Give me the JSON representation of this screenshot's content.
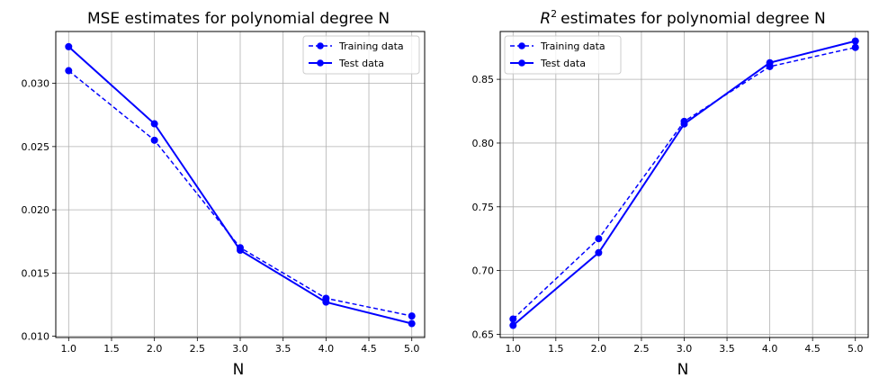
{
  "chart_data": [
    {
      "type": "line",
      "title": "MSE estimates for polynomial degree N",
      "xlabel": "N",
      "ylabel": "",
      "xlim": [
        0.85,
        5.15
      ],
      "ylim": [
        0.0099,
        0.0341
      ],
      "xticks": [
        1.0,
        1.5,
        2.0,
        2.5,
        3.0,
        3.5,
        4.0,
        4.5,
        5.0
      ],
      "xtick_labels": [
        "1.0",
        "1.5",
        "2.0",
        "2.5",
        "3.0",
        "3.5",
        "4.0",
        "4.5",
        "5.0"
      ],
      "yticks": [
        0.01,
        0.015,
        0.02,
        0.025,
        0.03
      ],
      "ytick_labels": [
        "0.010",
        "0.015",
        "0.020",
        "0.025",
        "0.030"
      ],
      "grid": true,
      "legend_position": "top-right",
      "x": [
        1,
        2,
        3,
        4,
        5
      ],
      "series": [
        {
          "name": "Training data",
          "values": [
            0.031,
            0.0255,
            0.017,
            0.013,
            0.0116
          ],
          "style": "dashed",
          "color": "#0000ff"
        },
        {
          "name": "Test data",
          "values": [
            0.0329,
            0.0268,
            0.0168,
            0.0127,
            0.011
          ],
          "style": "solid",
          "color": "#0000ff"
        }
      ]
    },
    {
      "type": "line",
      "title": "estimates for polynomial degree N",
      "title_prefix": "R",
      "title_superscript": "2",
      "xlabel": "N",
      "ylabel": "",
      "xlim": [
        0.85,
        5.15
      ],
      "ylim": [
        0.6475,
        0.8875
      ],
      "xticks": [
        1.0,
        1.5,
        2.0,
        2.5,
        3.0,
        3.5,
        4.0,
        4.5,
        5.0
      ],
      "xtick_labels": [
        "1.0",
        "1.5",
        "2.0",
        "2.5",
        "3.0",
        "3.5",
        "4.0",
        "4.5",
        "5.0"
      ],
      "yticks": [
        0.65,
        0.7,
        0.75,
        0.8,
        0.85
      ],
      "ytick_labels": [
        "0.65",
        "0.70",
        "0.75",
        "0.80",
        "0.85"
      ],
      "grid": true,
      "legend_position": "top-left",
      "x": [
        1,
        2,
        3,
        4,
        5
      ],
      "series": [
        {
          "name": "Training data",
          "values": [
            0.662,
            0.725,
            0.817,
            0.86,
            0.875
          ],
          "style": "dashed",
          "color": "#0000ff"
        },
        {
          "name": "Test data",
          "values": [
            0.657,
            0.714,
            0.815,
            0.863,
            0.88
          ],
          "style": "solid",
          "color": "#0000ff"
        }
      ]
    }
  ]
}
